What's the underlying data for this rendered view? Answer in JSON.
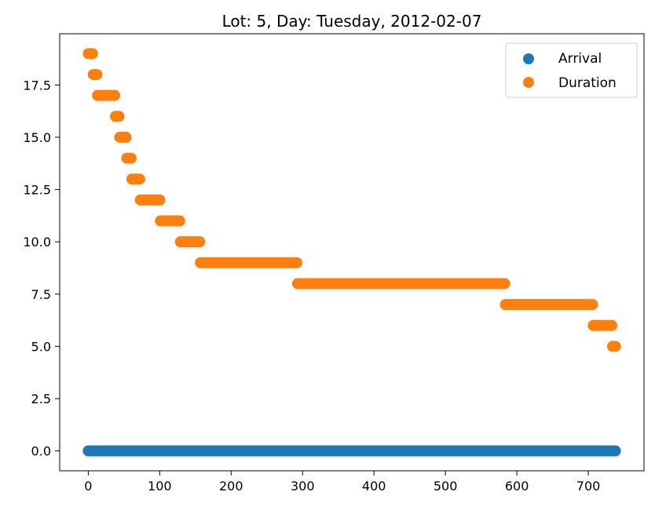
{
  "chart_data": {
    "type": "scatter",
    "title": "Lot: 5, Day: Tuesday, 2012-02-07",
    "xlabel": "",
    "ylabel": "",
    "xlim": [
      -40,
      778
    ],
    "ylim": [
      -0.95,
      19.95
    ],
    "xticks": [
      0,
      100,
      200,
      300,
      400,
      500,
      600,
      700
    ],
    "yticks": [
      0.0,
      2.5,
      5.0,
      7.5,
      10.0,
      12.5,
      15.0,
      17.5
    ],
    "ytick_labels": [
      "0.0",
      "2.5",
      "5.0",
      "7.5",
      "10.0",
      "12.5",
      "15.0",
      "17.5"
    ],
    "legend_position": "top-right",
    "grid": false,
    "series": [
      {
        "name": "Arrival",
        "color": "#1f77b4",
        "segments": [
          {
            "x_start": 0,
            "x_end": 738,
            "y": 0
          }
        ]
      },
      {
        "name": "Duration",
        "color": "#ff7f0e",
        "segments": [
          {
            "x_start": 0,
            "x_end": 6,
            "y": 19
          },
          {
            "x_start": 7,
            "x_end": 12,
            "y": 18
          },
          {
            "x_start": 13,
            "x_end": 37,
            "y": 17
          },
          {
            "x_start": 38,
            "x_end": 43,
            "y": 16
          },
          {
            "x_start": 44,
            "x_end": 53,
            "y": 15
          },
          {
            "x_start": 54,
            "x_end": 60,
            "y": 14
          },
          {
            "x_start": 61,
            "x_end": 72,
            "y": 13
          },
          {
            "x_start": 73,
            "x_end": 100,
            "y": 12
          },
          {
            "x_start": 101,
            "x_end": 128,
            "y": 11
          },
          {
            "x_start": 129,
            "x_end": 156,
            "y": 10
          },
          {
            "x_start": 157,
            "x_end": 292,
            "y": 9
          },
          {
            "x_start": 293,
            "x_end": 583,
            "y": 8
          },
          {
            "x_start": 584,
            "x_end": 706,
            "y": 7
          },
          {
            "x_start": 707,
            "x_end": 733,
            "y": 6
          },
          {
            "x_start": 734,
            "x_end": 738,
            "y": 5
          }
        ]
      }
    ]
  }
}
